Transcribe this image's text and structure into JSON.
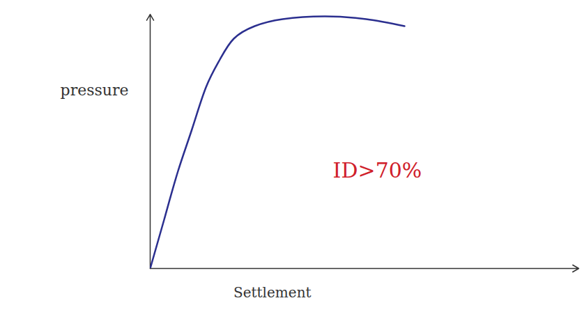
{
  "chart_data": {
    "type": "line",
    "x_label": "Settlement",
    "y_label": "pressure",
    "x": [
      0,
      20,
      40,
      60,
      80,
      100,
      120,
      150,
      190,
      250,
      310,
      365
    ],
    "values": [
      0,
      70,
      140,
      200,
      260,
      300,
      330,
      348,
      358,
      362,
      358,
      348
    ],
    "color": "#2b2f8f",
    "xlim": [
      0,
      615
    ],
    "ylim": [
      0,
      365
    ],
    "grid": false,
    "tick_labels": false,
    "annotations": [
      {
        "text": "ID>70%",
        "color": "#d0202a"
      }
    ]
  }
}
